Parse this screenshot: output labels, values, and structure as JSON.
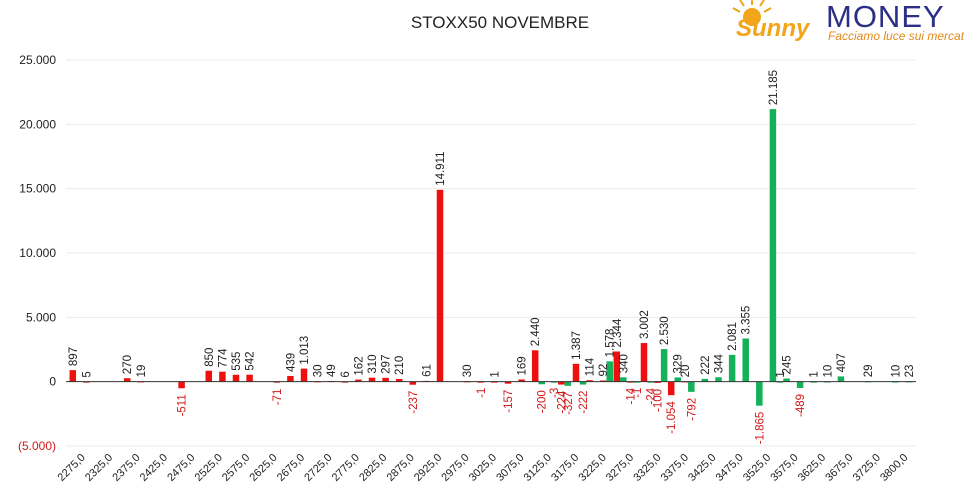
{
  "brand": {
    "script_text": "Sunny",
    "word": "MONEY",
    "tagline": "Facciamo luce sui mercati"
  },
  "colors": {
    "put": "#ee0f0f",
    "call": "#14b05a",
    "negative_label": "#d11a1a",
    "positive_label": "#222222",
    "brand_blue": "#2b2f85",
    "brand_orange": "#f2a51b"
  },
  "chart_data": {
    "type": "bar",
    "title": "STOXX50 NOVEMBRE",
    "xlabel": "",
    "ylabel": "",
    "ylim": [
      -5000,
      25000
    ],
    "yticks": [
      {
        "value": 25000,
        "label": "25.000"
      },
      {
        "value": 20000,
        "label": "20.000"
      },
      {
        "value": 15000,
        "label": "15.000"
      },
      {
        "value": 10000,
        "label": "10.000"
      },
      {
        "value": 5000,
        "label": "5.000"
      },
      {
        "value": 0,
        "label": "0"
      },
      {
        "value": -5000,
        "label": "(5.000)"
      }
    ],
    "xtick_labels": [
      "2275,0",
      "2325,0",
      "2375,0",
      "2425,0",
      "2475,0",
      "2525,0",
      "2575,0",
      "2625,0",
      "2675,0",
      "2725,0",
      "2775,0",
      "2825,0",
      "2875,0",
      "2925,0",
      "2975,0",
      "3025,0",
      "3075,0",
      "3125,0",
      "3175,0",
      "3225,0",
      "3275,0",
      "3325,0",
      "3375,0",
      "3425,0",
      "3475,0",
      "3525,0",
      "3575,0",
      "3625,0",
      "3675,0",
      "3725,0",
      "3800,0"
    ],
    "grid": true,
    "legend": "none",
    "bars": [
      {
        "strike": 2275,
        "value": 897,
        "label": "897",
        "color": "put"
      },
      {
        "strike": 2300,
        "value": 5,
        "label": "5",
        "color": "put"
      },
      {
        "strike": 2375,
        "value": 270,
        "label": "270",
        "color": "put"
      },
      {
        "strike": 2400,
        "value": 19,
        "label": "19",
        "color": "put"
      },
      {
        "strike": 2475,
        "value": -511,
        "label": "-511",
        "color": "put"
      },
      {
        "strike": 2525,
        "value": 850,
        "label": "850",
        "color": "put"
      },
      {
        "strike": 2550,
        "value": 774,
        "label": "774",
        "color": "put"
      },
      {
        "strike": 2575,
        "value": 535,
        "label": "535",
        "color": "put"
      },
      {
        "strike": 2600,
        "value": 542,
        "label": "542",
        "color": "put"
      },
      {
        "strike": 2650,
        "value": -71,
        "label": "-71",
        "color": "put"
      },
      {
        "strike": 2675,
        "value": 439,
        "label": "439",
        "color": "put"
      },
      {
        "strike": 2700,
        "value": 1013,
        "label": "1.013",
        "color": "put"
      },
      {
        "strike": 2725,
        "value": 30,
        "label": "30",
        "color": "put"
      },
      {
        "strike": 2750,
        "value": 49,
        "label": "49",
        "color": "put"
      },
      {
        "strike": 2775,
        "value": 6,
        "label": "6",
        "color": "put"
      },
      {
        "strike": 2800,
        "value": 162,
        "label": "162",
        "color": "put"
      },
      {
        "strike": 2825,
        "value": 310,
        "label": "310",
        "color": "put"
      },
      {
        "strike": 2850,
        "value": 297,
        "label": "297",
        "color": "put"
      },
      {
        "strike": 2875,
        "value": 210,
        "label": "210",
        "color": "put"
      },
      {
        "strike": 2900,
        "value": -237,
        "label": "-237",
        "color": "put"
      },
      {
        "strike": 2925,
        "value": 61,
        "label": "61",
        "color": "put"
      },
      {
        "strike": 2950,
        "value": 14911,
        "label": "14.911",
        "color": "put"
      },
      {
        "strike": 3000,
        "value": 30,
        "label": "30",
        "color": "put"
      },
      {
        "strike": 3025,
        "value": -1,
        "label": "-1",
        "color": "put"
      },
      {
        "strike": 3050,
        "value": 1,
        "label": "1",
        "color": "put"
      },
      {
        "strike": 3075,
        "value": -157,
        "label": "-157",
        "color": "put"
      },
      {
        "strike": 3100,
        "value": 169,
        "label": "169",
        "color": "put"
      },
      {
        "strike": 3125,
        "value": 2440,
        "label": "2.440",
        "color": "put"
      },
      {
        "strike": 3137,
        "value": -200,
        "label": "-200",
        "color": "call"
      },
      {
        "strike": 3160,
        "value": -3,
        "label": "-3",
        "color": "call"
      },
      {
        "strike": 3173,
        "value": -224,
        "label": "-224",
        "color": "put"
      },
      {
        "strike": 3185,
        "value": -327,
        "label": "-327",
        "color": "call"
      },
      {
        "strike": 3200,
        "value": 1387,
        "label": "1.387",
        "color": "put"
      },
      {
        "strike": 3213,
        "value": -222,
        "label": "-222",
        "color": "call"
      },
      {
        "strike": 3225,
        "value": 114,
        "label": "114",
        "color": "put"
      },
      {
        "strike": 3250,
        "value": 92,
        "label": "92",
        "color": "put"
      },
      {
        "strike": 3262,
        "value": 1578,
        "label": "1.578",
        "color": "call"
      },
      {
        "strike": 3275,
        "value": 2344,
        "label": "2.344",
        "color": "put"
      },
      {
        "strike": 3287,
        "value": 340,
        "label": "340",
        "color": "call"
      },
      {
        "strike": 3300,
        "value": -14,
        "label": "-14",
        "color": "put"
      },
      {
        "strike": 3312,
        "value": -1,
        "label": "-1",
        "color": "call"
      },
      {
        "strike": 3325,
        "value": 3002,
        "label": "3.002",
        "color": "put"
      },
      {
        "strike": 3337,
        "value": -24,
        "label": "-24",
        "color": "call"
      },
      {
        "strike": 3350,
        "value": -100,
        "label": "-100",
        "color": "put"
      },
      {
        "strike": 3362,
        "value": 2530,
        "label": "2.530",
        "color": "call"
      },
      {
        "strike": 3375,
        "value": -1054,
        "label": "-1.054",
        "color": "put"
      },
      {
        "strike": 3387,
        "value": 329,
        "label": "329",
        "color": "call"
      },
      {
        "strike": 3400,
        "value": 20,
        "label": "20",
        "color": "put"
      },
      {
        "strike": 3412,
        "value": -792,
        "label": "-792",
        "color": "call"
      },
      {
        "strike": 3437,
        "value": 222,
        "label": "222",
        "color": "call"
      },
      {
        "strike": 3462,
        "value": 344,
        "label": "344",
        "color": "call"
      },
      {
        "strike": 3487,
        "value": 2081,
        "label": "2.081",
        "color": "call"
      },
      {
        "strike": 3512,
        "value": 3355,
        "label": "3.355",
        "color": "call"
      },
      {
        "strike": 3537,
        "value": -1865,
        "label": "-1.865",
        "color": "call"
      },
      {
        "strike": 3562,
        "value": 21185,
        "label": "21.185",
        "color": "call"
      },
      {
        "strike": 3575,
        "value": 1,
        "label": "1",
        "color": "call"
      },
      {
        "strike": 3587,
        "value": 245,
        "label": "245",
        "color": "call"
      },
      {
        "strike": 3612,
        "value": -489,
        "label": "-489",
        "color": "call"
      },
      {
        "strike": 3637,
        "value": 1,
        "label": "1",
        "color": "call"
      },
      {
        "strike": 3662,
        "value": 10,
        "label": "10",
        "color": "call"
      },
      {
        "strike": 3687,
        "value": 407,
        "label": "407",
        "color": "call"
      },
      {
        "strike": 3737,
        "value": 29,
        "label": "29",
        "color": "call"
      },
      {
        "strike": 3787,
        "value": 10,
        "label": "10",
        "color": "call"
      },
      {
        "strike": 3812,
        "value": 23,
        "label": "23",
        "color": "call"
      }
    ]
  }
}
